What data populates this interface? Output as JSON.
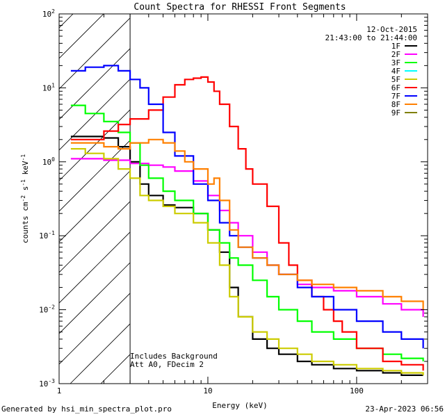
{
  "chart_data": {
    "type": "line",
    "title": "Count Spectra for RHESSI Front Segments",
    "date": "12-Oct-2015",
    "time_range": "21:43:00 to 21:44:00",
    "xlabel": "Energy (keV)",
    "ylabel_parts": {
      "base": "counts cm",
      "exp1": "-2",
      "mid": " s",
      "exp2": "-1",
      "mid2": " keV",
      "exp3": "-1"
    },
    "x_scale": "log",
    "y_scale": "log",
    "xlim": [
      1,
      300
    ],
    "ylim": [
      0.001,
      100
    ],
    "x_tick_labels": [
      "1",
      "10",
      "100"
    ],
    "y_tick_labels": [
      {
        "value": 100,
        "base": "10",
        "exp": "2"
      },
      {
        "value": 10,
        "base": "10",
        "exp": "1"
      },
      {
        "value": 1,
        "base": "10",
        "exp": "0"
      },
      {
        "value": 0.1,
        "base": "10",
        "exp": "-1"
      },
      {
        "value": 0.01,
        "base": "10",
        "exp": "-2"
      },
      {
        "value": 0.001,
        "base": "10",
        "exp": "-3"
      }
    ],
    "shaded_region_max_energy": 3,
    "annotations": [
      "Includes Background",
      "Att A0, FDecim 2"
    ],
    "series": [
      {
        "name": "1F",
        "color": "#000000",
        "points": [
          [
            1.2,
            2.2
          ],
          [
            1.5,
            2.2
          ],
          [
            2,
            2.1
          ],
          [
            2.5,
            1.6
          ],
          [
            3,
            1.0
          ],
          [
            3.5,
            0.5
          ],
          [
            4,
            0.35
          ],
          [
            5,
            0.26
          ],
          [
            6,
            0.24
          ],
          [
            8,
            0.2
          ],
          [
            10,
            0.12
          ],
          [
            12,
            0.06
          ],
          [
            14,
            0.02
          ],
          [
            16,
            0.008
          ],
          [
            20,
            0.004
          ],
          [
            25,
            0.003
          ],
          [
            30,
            0.0025
          ],
          [
            40,
            0.002
          ],
          [
            50,
            0.0018
          ],
          [
            70,
            0.0016
          ],
          [
            100,
            0.0015
          ],
          [
            150,
            0.0014
          ],
          [
            200,
            0.0013
          ],
          [
            280,
            0.0013
          ]
        ]
      },
      {
        "name": "2F",
        "color": "#ff00ff",
        "points": [
          [
            1.2,
            1.1
          ],
          [
            1.5,
            1.1
          ],
          [
            2,
            1.05
          ],
          [
            3,
            0.95
          ],
          [
            4,
            0.9
          ],
          [
            5,
            0.85
          ],
          [
            6,
            0.75
          ],
          [
            8,
            0.55
          ],
          [
            10,
            0.35
          ],
          [
            12,
            0.22
          ],
          [
            14,
            0.15
          ],
          [
            16,
            0.1
          ],
          [
            20,
            0.06
          ],
          [
            25,
            0.04
          ],
          [
            30,
            0.03
          ],
          [
            40,
            0.022
          ],
          [
            50,
            0.02
          ],
          [
            70,
            0.018
          ],
          [
            100,
            0.015
          ],
          [
            150,
            0.012
          ],
          [
            200,
            0.01
          ],
          [
            280,
            0.008
          ]
        ]
      },
      {
        "name": "3F",
        "color": "#00ff00",
        "points": [
          [
            1.2,
            5.8
          ],
          [
            1.5,
            4.5
          ],
          [
            2,
            3.5
          ],
          [
            2.5,
            2.5
          ],
          [
            3,
            1.8
          ],
          [
            3.5,
            0.9
          ],
          [
            4,
            0.6
          ],
          [
            5,
            0.4
          ],
          [
            6,
            0.3
          ],
          [
            8,
            0.2
          ],
          [
            10,
            0.12
          ],
          [
            12,
            0.08
          ],
          [
            14,
            0.05
          ],
          [
            16,
            0.04
          ],
          [
            20,
            0.025
          ],
          [
            25,
            0.015
          ],
          [
            30,
            0.01
          ],
          [
            40,
            0.007
          ],
          [
            50,
            0.005
          ],
          [
            70,
            0.004
          ],
          [
            100,
            0.003
          ],
          [
            150,
            0.0025
          ],
          [
            200,
            0.0022
          ],
          [
            280,
            0.002
          ]
        ]
      },
      {
        "name": "4F",
        "color": "#00ffff",
        "points": []
      },
      {
        "name": "5F",
        "color": "#cccc00",
        "points": [
          [
            1.2,
            1.5
          ],
          [
            1.5,
            1.3
          ],
          [
            2,
            1.1
          ],
          [
            2.5,
            0.8
          ],
          [
            3,
            0.6
          ],
          [
            3.5,
            0.35
          ],
          [
            4,
            0.3
          ],
          [
            5,
            0.25
          ],
          [
            6,
            0.2
          ],
          [
            8,
            0.15
          ],
          [
            10,
            0.08
          ],
          [
            12,
            0.04
          ],
          [
            14,
            0.015
          ],
          [
            16,
            0.008
          ],
          [
            20,
            0.005
          ],
          [
            25,
            0.004
          ],
          [
            30,
            0.003
          ],
          [
            40,
            0.0025
          ],
          [
            50,
            0.002
          ],
          [
            70,
            0.0018
          ],
          [
            100,
            0.0016
          ],
          [
            150,
            0.0015
          ],
          [
            200,
            0.0014
          ],
          [
            280,
            0.0013
          ]
        ]
      },
      {
        "name": "6F",
        "color": "#ff0000",
        "points": [
          [
            1.2,
            2.0
          ],
          [
            1.5,
            2.0
          ],
          [
            2,
            2.6
          ],
          [
            2.5,
            3.2
          ],
          [
            3,
            3.8
          ],
          [
            4,
            5
          ],
          [
            5,
            7.5
          ],
          [
            6,
            11
          ],
          [
            7,
            13
          ],
          [
            8,
            13.5
          ],
          [
            9,
            14
          ],
          [
            10,
            12
          ],
          [
            11,
            9
          ],
          [
            12,
            6
          ],
          [
            14,
            3
          ],
          [
            16,
            1.5
          ],
          [
            18,
            0.8
          ],
          [
            20,
            0.5
          ],
          [
            25,
            0.25
          ],
          [
            30,
            0.08
          ],
          [
            35,
            0.04
          ],
          [
            40,
            0.025
          ],
          [
            50,
            0.015
          ],
          [
            60,
            0.01
          ],
          [
            70,
            0.007
          ],
          [
            80,
            0.005
          ],
          [
            100,
            0.003
          ],
          [
            150,
            0.002
          ],
          [
            200,
            0.0018
          ],
          [
            280,
            0.0015
          ]
        ]
      },
      {
        "name": "7F",
        "color": "#0000ff",
        "points": [
          [
            1.2,
            17
          ],
          [
            1.5,
            19
          ],
          [
            2,
            20
          ],
          [
            2.5,
            17
          ],
          [
            3,
            13
          ],
          [
            3.5,
            10
          ],
          [
            4,
            6
          ],
          [
            5,
            2.5
          ],
          [
            6,
            1.2
          ],
          [
            8,
            0.5
          ],
          [
            10,
            0.3
          ],
          [
            12,
            0.15
          ],
          [
            14,
            0.1
          ],
          [
            16,
            0.07
          ],
          [
            20,
            0.05
          ],
          [
            25,
            0.04
          ],
          [
            30,
            0.03
          ],
          [
            40,
            0.02
          ],
          [
            50,
            0.015
          ],
          [
            70,
            0.01
          ],
          [
            100,
            0.007
          ],
          [
            150,
            0.005
          ],
          [
            200,
            0.004
          ],
          [
            280,
            0.003
          ]
        ]
      },
      {
        "name": "8F",
        "color": "#ff8000",
        "points": [
          [
            1.2,
            1.8
          ],
          [
            1.5,
            1.8
          ],
          [
            2,
            1.6
          ],
          [
            2.5,
            1.5
          ],
          [
            3,
            1.8
          ],
          [
            4,
            2.0
          ],
          [
            5,
            1.8
          ],
          [
            6,
            1.4
          ],
          [
            7,
            1.0
          ],
          [
            8,
            0.8
          ],
          [
            10,
            0.5
          ],
          [
            11,
            0.6
          ],
          [
            12,
            0.3
          ],
          [
            14,
            0.12
          ],
          [
            16,
            0.07
          ],
          [
            20,
            0.05
          ],
          [
            25,
            0.04
          ],
          [
            30,
            0.03
          ],
          [
            40,
            0.025
          ],
          [
            50,
            0.022
          ],
          [
            70,
            0.02
          ],
          [
            100,
            0.018
          ],
          [
            150,
            0.015
          ],
          [
            200,
            0.013
          ],
          [
            280,
            0.01
          ]
        ]
      },
      {
        "name": "9F",
        "color": "#808000",
        "points": []
      }
    ]
  },
  "footer": {
    "left": "Generated by hsi_min_spectra_plot.pro",
    "right": "23-Apr-2023 06:56"
  }
}
